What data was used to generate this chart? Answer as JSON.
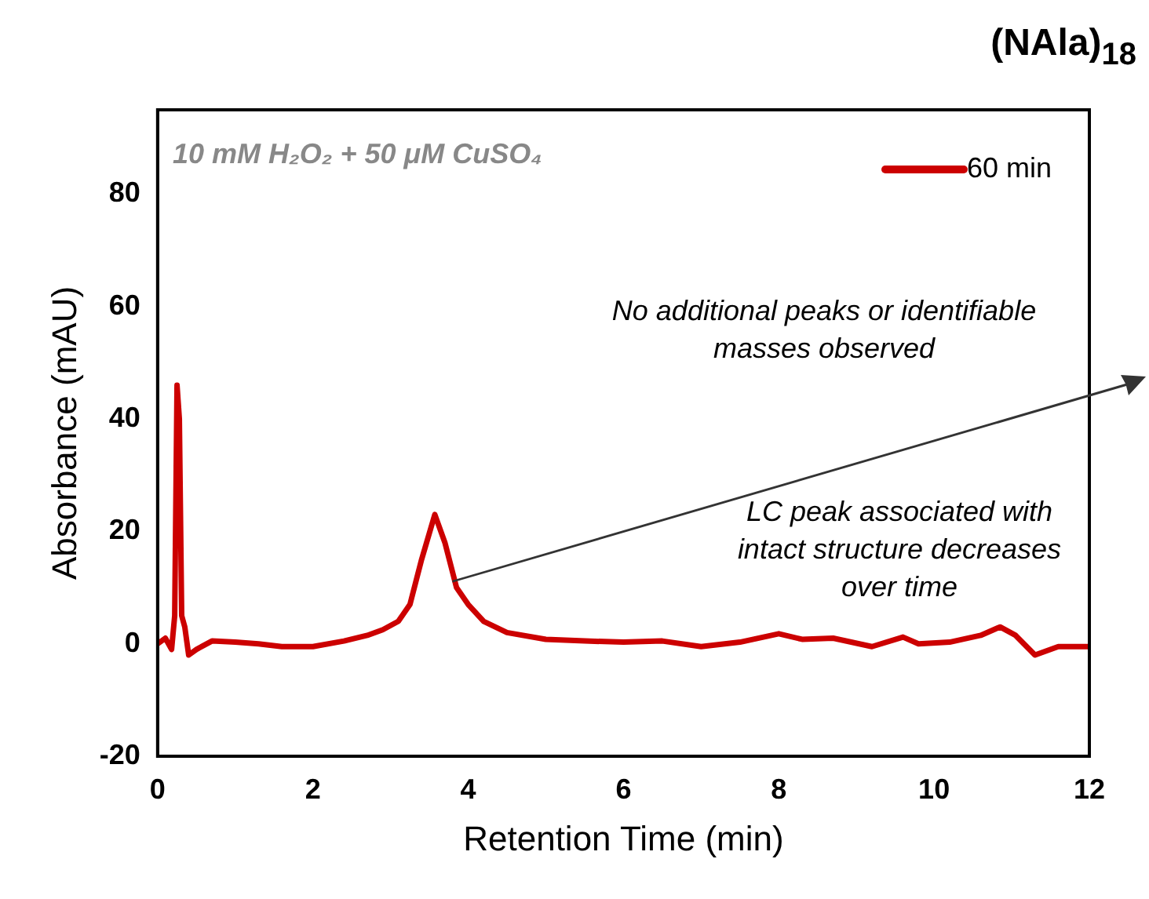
{
  "chart_data": {
    "type": "line",
    "title": "(NAla)$_{18}$",
    "xlabel": "Retention Time (min)",
    "ylabel": "Absorbance (mAU)",
    "annotations": [
      "10 mM H₂O₂ + 50 μM CuSO₄",
      "No additional peaks or identifiable masses observed",
      "LC peak associated with intact structure decreases over time"
    ],
    "x": [
      0,
      0.1,
      0.18,
      0.22,
      0.25,
      0.28,
      0.31,
      0.35,
      0.4,
      0.5,
      0.7,
      1,
      1.3,
      1.6,
      2,
      2.4,
      2.7,
      2.9,
      3.1,
      3.25,
      3.4,
      3.57,
      3.7,
      3.85,
      4,
      4.2,
      4.5,
      5,
      5.5,
      6,
      6.5,
      7,
      7.5,
      8,
      8.3,
      8.7,
      9.2,
      9.6,
      9.8,
      10.2,
      10.6,
      10.85,
      11.05,
      11.3,
      11.6,
      12
    ],
    "series": [
      {
        "name": "60 min",
        "color": "#cc0000",
        "values": [
          0,
          1,
          -1,
          5,
          46,
          40,
          5,
          3,
          -2,
          -1,
          0.5,
          0.3,
          0,
          -0.5,
          -0.5,
          0.5,
          1.5,
          2.5,
          4,
          7,
          15,
          23,
          18,
          10,
          7,
          4,
          2,
          0.8,
          0.5,
          0.3,
          0.5,
          -0.5,
          0.3,
          1.8,
          0.8,
          1,
          -0.5,
          1.2,
          0,
          0.3,
          1.5,
          3,
          1.5,
          -2,
          -0.5,
          -0.5
        ]
      }
    ],
    "xlim": [
      0,
      12
    ],
    "xticks": [
      0,
      2,
      4,
      6,
      8,
      10,
      12
    ],
    "ylim": [
      -20,
      95
    ],
    "yticks": [
      -20,
      0,
      20,
      40,
      60,
      80
    ],
    "grid": false,
    "legend": "top right",
    "marker": "none",
    "line_style": "solid"
  }
}
